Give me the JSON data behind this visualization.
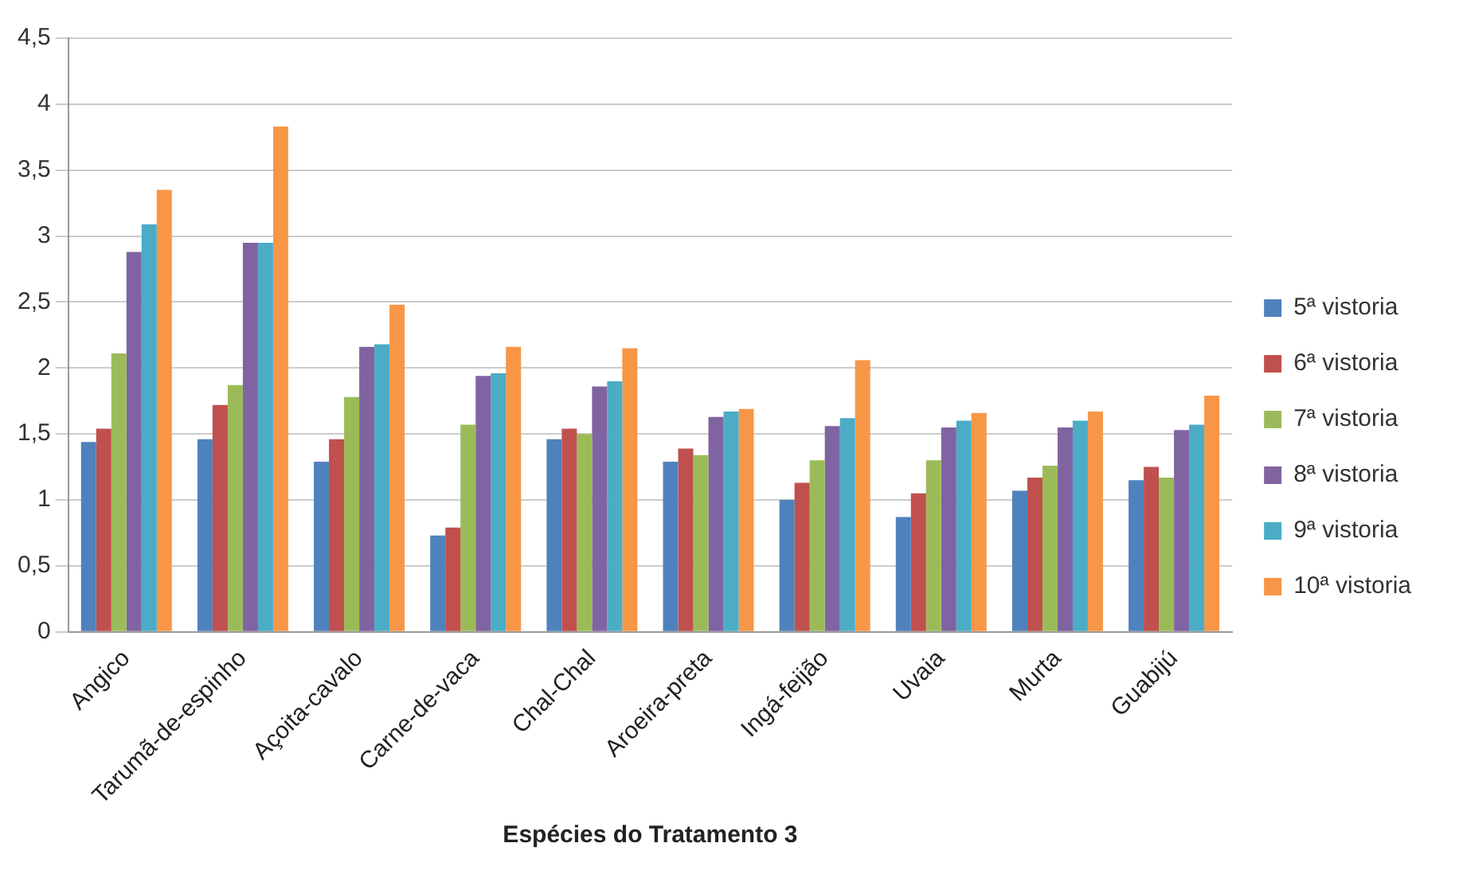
{
  "chart_data": {
    "type": "bar",
    "xlabel": "Espécies do Tratamento 3",
    "categories": [
      "Angico",
      "Tarumã-de-espinho",
      "Açoita-cavalo",
      "Carne-de-vaca",
      "Chal-Chal",
      "Aroeira-preta",
      "Ingá-feijão",
      "Uvaia",
      "Murta",
      "Guabijú"
    ],
    "series": [
      {
        "name": "5ª vistoria",
        "color": "#4f81bd",
        "values": [
          1.44,
          1.46,
          1.29,
          0.73,
          1.46,
          1.29,
          1.0,
          0.87,
          1.07,
          1.15
        ]
      },
      {
        "name": "6ª vistoria",
        "color": "#c0504d",
        "values": [
          1.54,
          1.72,
          1.46,
          0.79,
          1.54,
          1.39,
          1.13,
          1.05,
          1.17,
          1.25
        ]
      },
      {
        "name": "7ª vistoria",
        "color": "#9bbb59",
        "values": [
          2.11,
          1.87,
          1.78,
          1.57,
          1.5,
          1.34,
          1.3,
          1.3,
          1.26,
          1.17
        ]
      },
      {
        "name": "8ª vistoria",
        "color": "#8064a2",
        "values": [
          2.88,
          2.95,
          2.16,
          1.94,
          1.86,
          1.63,
          1.56,
          1.55,
          1.55,
          1.53
        ]
      },
      {
        "name": "9ª vistoria",
        "color": "#4bacc6",
        "values": [
          3.09,
          2.95,
          2.18,
          1.96,
          1.9,
          1.67,
          1.62,
          1.6,
          1.6,
          1.57
        ]
      },
      {
        "name": "10ª vistoria",
        "color": "#f79646",
        "values": [
          3.35,
          3.83,
          2.48,
          2.16,
          2.15,
          1.69,
          2.06,
          1.66,
          1.67,
          1.79
        ]
      }
    ],
    "ylim": [
      0,
      4.5
    ],
    "yticks": [
      0,
      {
        "value": 0.5,
        "label": "0,5"
      },
      1,
      {
        "value": 1.5,
        "label": "1,5"
      },
      2,
      {
        "value": 2.5,
        "label": "2,5"
      },
      3,
      {
        "value": 3.5,
        "label": "3,5"
      },
      4,
      {
        "value": 4.5,
        "label": "4,5"
      }
    ],
    "grid": "y",
    "legend": "right"
  }
}
